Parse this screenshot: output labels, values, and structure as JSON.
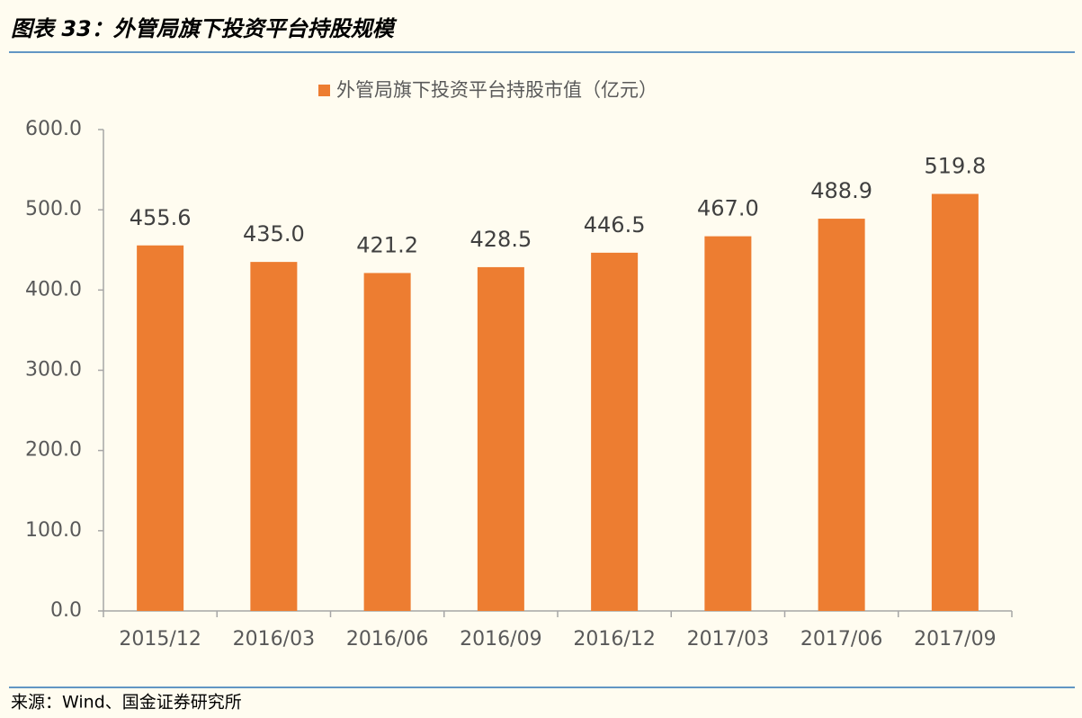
{
  "chart_data": {
    "type": "bar",
    "title": "图表 33：外管局旗下投资平台持股规模",
    "source": "来源：Wind、国金证券研究所",
    "categories": [
      "2015/12",
      "2016/03",
      "2016/06",
      "2016/09",
      "2016/12",
      "2017/03",
      "2017/06",
      "2017/09"
    ],
    "series": [
      {
        "name": "外管局旗下投资平台持股市值（亿元）",
        "color": "#ed7d31",
        "values": [
          455.6,
          435.0,
          421.2,
          428.5,
          446.5,
          467.0,
          488.9,
          519.8
        ],
        "value_labels": [
          "455.6",
          "435.0",
          "421.2",
          "428.5",
          "446.5",
          "467.0",
          "488.9",
          "519.8"
        ]
      }
    ],
    "ylim": [
      0,
      600
    ],
    "yticks": [
      {
        "value": 0,
        "label": "0.0"
      },
      {
        "value": 100,
        "label": "100.0"
      },
      {
        "value": 200,
        "label": "200.0"
      },
      {
        "value": 300,
        "label": "300.0"
      },
      {
        "value": 400,
        "label": "400.0"
      },
      {
        "value": 500,
        "label": "500.0"
      },
      {
        "value": 600,
        "label": "600.0"
      }
    ],
    "grid": false,
    "legend": "top"
  }
}
